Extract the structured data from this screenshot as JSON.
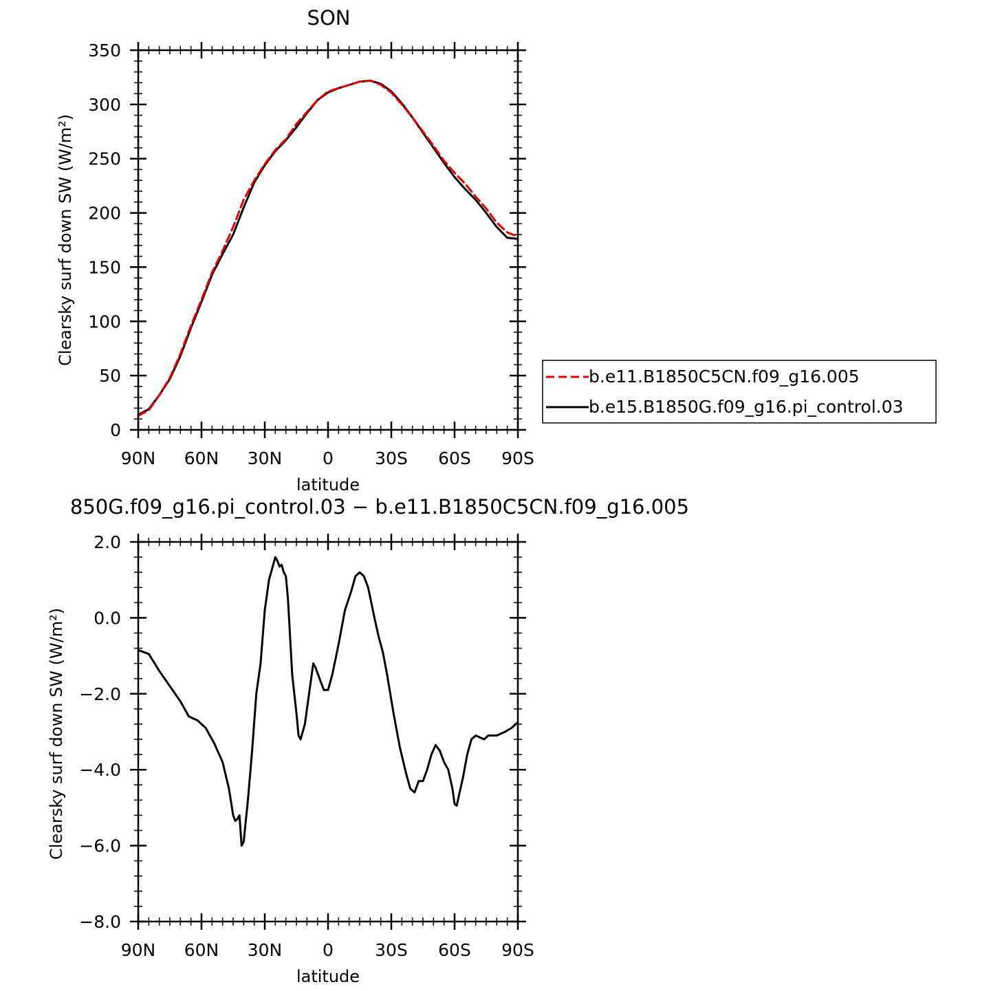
{
  "chart_data": [
    {
      "type": "line",
      "title": "SON",
      "xlabel": "latitude",
      "ylabel": "Clearsky surf down SW (W/m²)",
      "xticks": [
        "90N",
        "60N",
        "30N",
        "0",
        "30S",
        "60S",
        "90S"
      ],
      "yticks": [
        "0",
        "50",
        "100",
        "150",
        "200",
        "250",
        "300",
        "350"
      ],
      "xlim": [
        90,
        -90
      ],
      "ylim": [
        0,
        350
      ],
      "legend_position": "right",
      "series": [
        {
          "name": "b.e11.B1850C5CN.f09_g16.005",
          "color": "#e00000",
          "dash": "dashed",
          "points": [
            [
              90,
              13
            ],
            [
              85,
              18
            ],
            [
              80,
              32
            ],
            [
              75,
              48
            ],
            [
              70,
              70
            ],
            [
              65,
              96
            ],
            [
              60,
              120
            ],
            [
              55,
              145
            ],
            [
              50,
              165
            ],
            [
              45,
              187
            ],
            [
              40,
              212
            ],
            [
              35,
              230
            ],
            [
              30,
              245
            ],
            [
              25,
              258
            ],
            [
              20,
              268
            ],
            [
              15,
              282
            ],
            [
              10,
              293
            ],
            [
              5,
              304
            ],
            [
              0,
              312
            ],
            [
              -5,
              315
            ],
            [
              -10,
              318
            ],
            [
              -15,
              321
            ],
            [
              -20,
              322
            ],
            [
              -25,
              318
            ],
            [
              -30,
              311
            ],
            [
              -35,
              300
            ],
            [
              -40,
              288
            ],
            [
              -45,
              275
            ],
            [
              -50,
              262
            ],
            [
              -55,
              248
            ],
            [
              -60,
              237
            ],
            [
              -65,
              227
            ],
            [
              -70,
              215
            ],
            [
              -75,
              204
            ],
            [
              -80,
              191
            ],
            [
              -85,
              182
            ],
            [
              -90,
              178
            ]
          ]
        },
        {
          "name": "b.e15.B1850G.f09_g16.pi_control.03",
          "color": "#000000",
          "dash": "solid",
          "points": [
            [
              90,
              14
            ],
            [
              85,
              19
            ],
            [
              80,
              32
            ],
            [
              75,
              47
            ],
            [
              70,
              68
            ],
            [
              65,
              94
            ],
            [
              60,
              118
            ],
            [
              55,
              143
            ],
            [
              50,
              162
            ],
            [
              45,
              180
            ],
            [
              40,
              205
            ],
            [
              35,
              228
            ],
            [
              30,
              244
            ],
            [
              25,
              257
            ],
            [
              20,
              267
            ],
            [
              15,
              279
            ],
            [
              10,
              292
            ],
            [
              5,
              304
            ],
            [
              0,
              311
            ],
            [
              -5,
              315
            ],
            [
              -10,
              318
            ],
            [
              -15,
              321
            ],
            [
              -20,
              322
            ],
            [
              -25,
              319
            ],
            [
              -30,
              312
            ],
            [
              -35,
              301
            ],
            [
              -40,
              288
            ],
            [
              -45,
              274
            ],
            [
              -50,
              260
            ],
            [
              -55,
              246
            ],
            [
              -60,
              233
            ],
            [
              -65,
              222
            ],
            [
              -70,
              212
            ],
            [
              -75,
              200
            ],
            [
              -80,
              187
            ],
            [
              -85,
              177
            ],
            [
              -90,
              176
            ]
          ]
        }
      ]
    },
    {
      "type": "line",
      "title": "850G.f09_g16.pi_control.03 − b.e11.B1850C5CN.f09_g16.005",
      "xlabel": "latitude",
      "ylabel": "Clearsky surf down SW (W/m²)",
      "xticks": [
        "90N",
        "60N",
        "30N",
        "0",
        "30S",
        "60S",
        "90S"
      ],
      "yticks": [
        "−8.0",
        "−6.0",
        "−4.0",
        "−2.0",
        "0.0",
        "2.0"
      ],
      "xlim": [
        90,
        -90
      ],
      "ylim": [
        -8,
        2
      ],
      "series": [
        {
          "color": "#000000",
          "dash": "solid",
          "points": [
            [
              90,
              -0.85
            ],
            [
              85,
              -0.95
            ],
            [
              80,
              -1.4
            ],
            [
              75,
              -1.8
            ],
            [
              70,
              -2.2
            ],
            [
              66,
              -2.6
            ],
            [
              62,
              -2.7
            ],
            [
              58,
              -2.9
            ],
            [
              54,
              -3.3
            ],
            [
              50,
              -3.8
            ],
            [
              47,
              -4.5
            ],
            [
              45,
              -5.2
            ],
            [
              44,
              -5.35
            ],
            [
              43,
              -5.3
            ],
            [
              42,
              -5.2
            ],
            [
              41,
              -6.0
            ],
            [
              40,
              -5.9
            ],
            [
              38,
              -4.8
            ],
            [
              36,
              -3.5
            ],
            [
              34,
              -2.0
            ],
            [
              32,
              -1.2
            ],
            [
              30,
              0.2
            ],
            [
              28,
              1.0
            ],
            [
              26,
              1.4
            ],
            [
              25,
              1.6
            ],
            [
              24,
              1.5
            ],
            [
              23,
              1.35
            ],
            [
              22,
              1.4
            ],
            [
              21,
              1.2
            ],
            [
              20,
              1.1
            ],
            [
              19,
              0.5
            ],
            [
              17,
              -1.5
            ],
            [
              15,
              -2.5
            ],
            [
              14,
              -3.1
            ],
            [
              13,
              -3.2
            ],
            [
              11,
              -2.8
            ],
            [
              9,
              -2.0
            ],
            [
              7,
              -1.2
            ],
            [
              6,
              -1.3
            ],
            [
              4,
              -1.6
            ],
            [
              2,
              -1.9
            ],
            [
              0,
              -1.9
            ],
            [
              -2,
              -1.5
            ],
            [
              -5,
              -0.7
            ],
            [
              -8,
              0.2
            ],
            [
              -11,
              0.7
            ],
            [
              -13,
              1.1
            ],
            [
              -15,
              1.2
            ],
            [
              -17,
              1.1
            ],
            [
              -19,
              0.8
            ],
            [
              -22,
              0.0
            ],
            [
              -24,
              -0.5
            ],
            [
              -26,
              -0.9
            ],
            [
              -28,
              -1.5
            ],
            [
              -31,
              -2.5
            ],
            [
              -34,
              -3.4
            ],
            [
              -37,
              -4.1
            ],
            [
              -39,
              -4.5
            ],
            [
              -41,
              -4.6
            ],
            [
              -43,
              -4.3
            ],
            [
              -45,
              -4.3
            ],
            [
              -47,
              -4.0
            ],
            [
              -49,
              -3.6
            ],
            [
              -51,
              -3.35
            ],
            [
              -53,
              -3.5
            ],
            [
              -55,
              -3.8
            ],
            [
              -57,
              -4.0
            ],
            [
              -59,
              -4.5
            ],
            [
              -60,
              -4.9
            ],
            [
              -61,
              -4.95
            ],
            [
              -62,
              -4.7
            ],
            [
              -64,
              -4.2
            ],
            [
              -66,
              -3.6
            ],
            [
              -68,
              -3.2
            ],
            [
              -70,
              -3.1
            ],
            [
              -72,
              -3.15
            ],
            [
              -74,
              -3.2
            ],
            [
              -76,
              -3.1
            ],
            [
              -80,
              -3.1
            ],
            [
              -84,
              -3.0
            ],
            [
              -87,
              -2.9
            ],
            [
              -90,
              -2.75
            ]
          ]
        }
      ]
    }
  ]
}
